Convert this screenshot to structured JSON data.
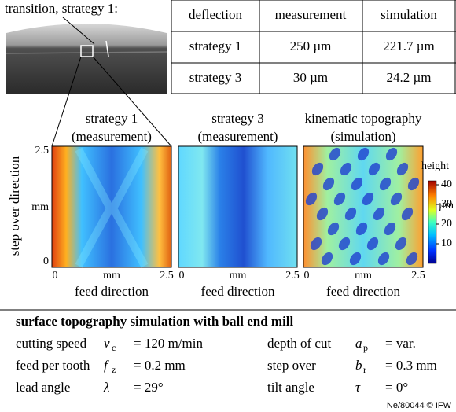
{
  "photo_label": "transition, strategy 1:",
  "table": {
    "header": [
      "deflection",
      "measurement",
      "simulation"
    ],
    "rows": [
      [
        "strategy 1",
        "250 µm",
        "221.7 µm"
      ],
      [
        "strategy 3",
        "30 µm",
        "24.2 µm"
      ]
    ]
  },
  "panels": [
    {
      "title": [
        "strategy 1",
        "(measurement)"
      ],
      "x_ticks": [
        "0",
        "mm",
        "2.5"
      ],
      "x_label": "feed direction"
    },
    {
      "title": [
        "strategy 3",
        "(measurement)"
      ],
      "x_ticks": [
        "0",
        "mm",
        "2.5"
      ],
      "x_label": "feed direction"
    },
    {
      "title": [
        "kinematic topography",
        "(simulation)"
      ],
      "x_ticks": [
        "0",
        "mm",
        "2.5"
      ],
      "x_label": "feed direction"
    }
  ],
  "y_axis": {
    "label": "step over direction",
    "ticks": [
      "0",
      "mm",
      "2.5"
    ]
  },
  "colorbar": {
    "title": "height",
    "unit": "µm",
    "lim": [
      0,
      42
    ],
    "ticks": [
      10,
      20,
      30,
      40
    ]
  },
  "params": {
    "title": "surface topography simulation with ball end mill",
    "rows": [
      [
        {
          "label": "cutting speed",
          "symbol": "v",
          "sub": "c",
          "value": "= 120 m/min"
        },
        {
          "label": "depth of cut",
          "symbol": "a",
          "sub": "p",
          "value": "= var."
        }
      ],
      [
        {
          "label": "feed per tooth",
          "symbol": "f",
          "sub": "z",
          "value": "= 0.2 mm"
        },
        {
          "label": "step over",
          "symbol": "b",
          "sub": "r",
          "value": "= 0.3 mm"
        }
      ],
      [
        {
          "label": "lead angle",
          "symbol": "λ",
          "value": "= 29°"
        },
        {
          "label": "tilt angle",
          "symbol": "τ",
          "value": "= 0°"
        }
      ]
    ]
  },
  "credit": "Ne/80044 © IFW"
}
